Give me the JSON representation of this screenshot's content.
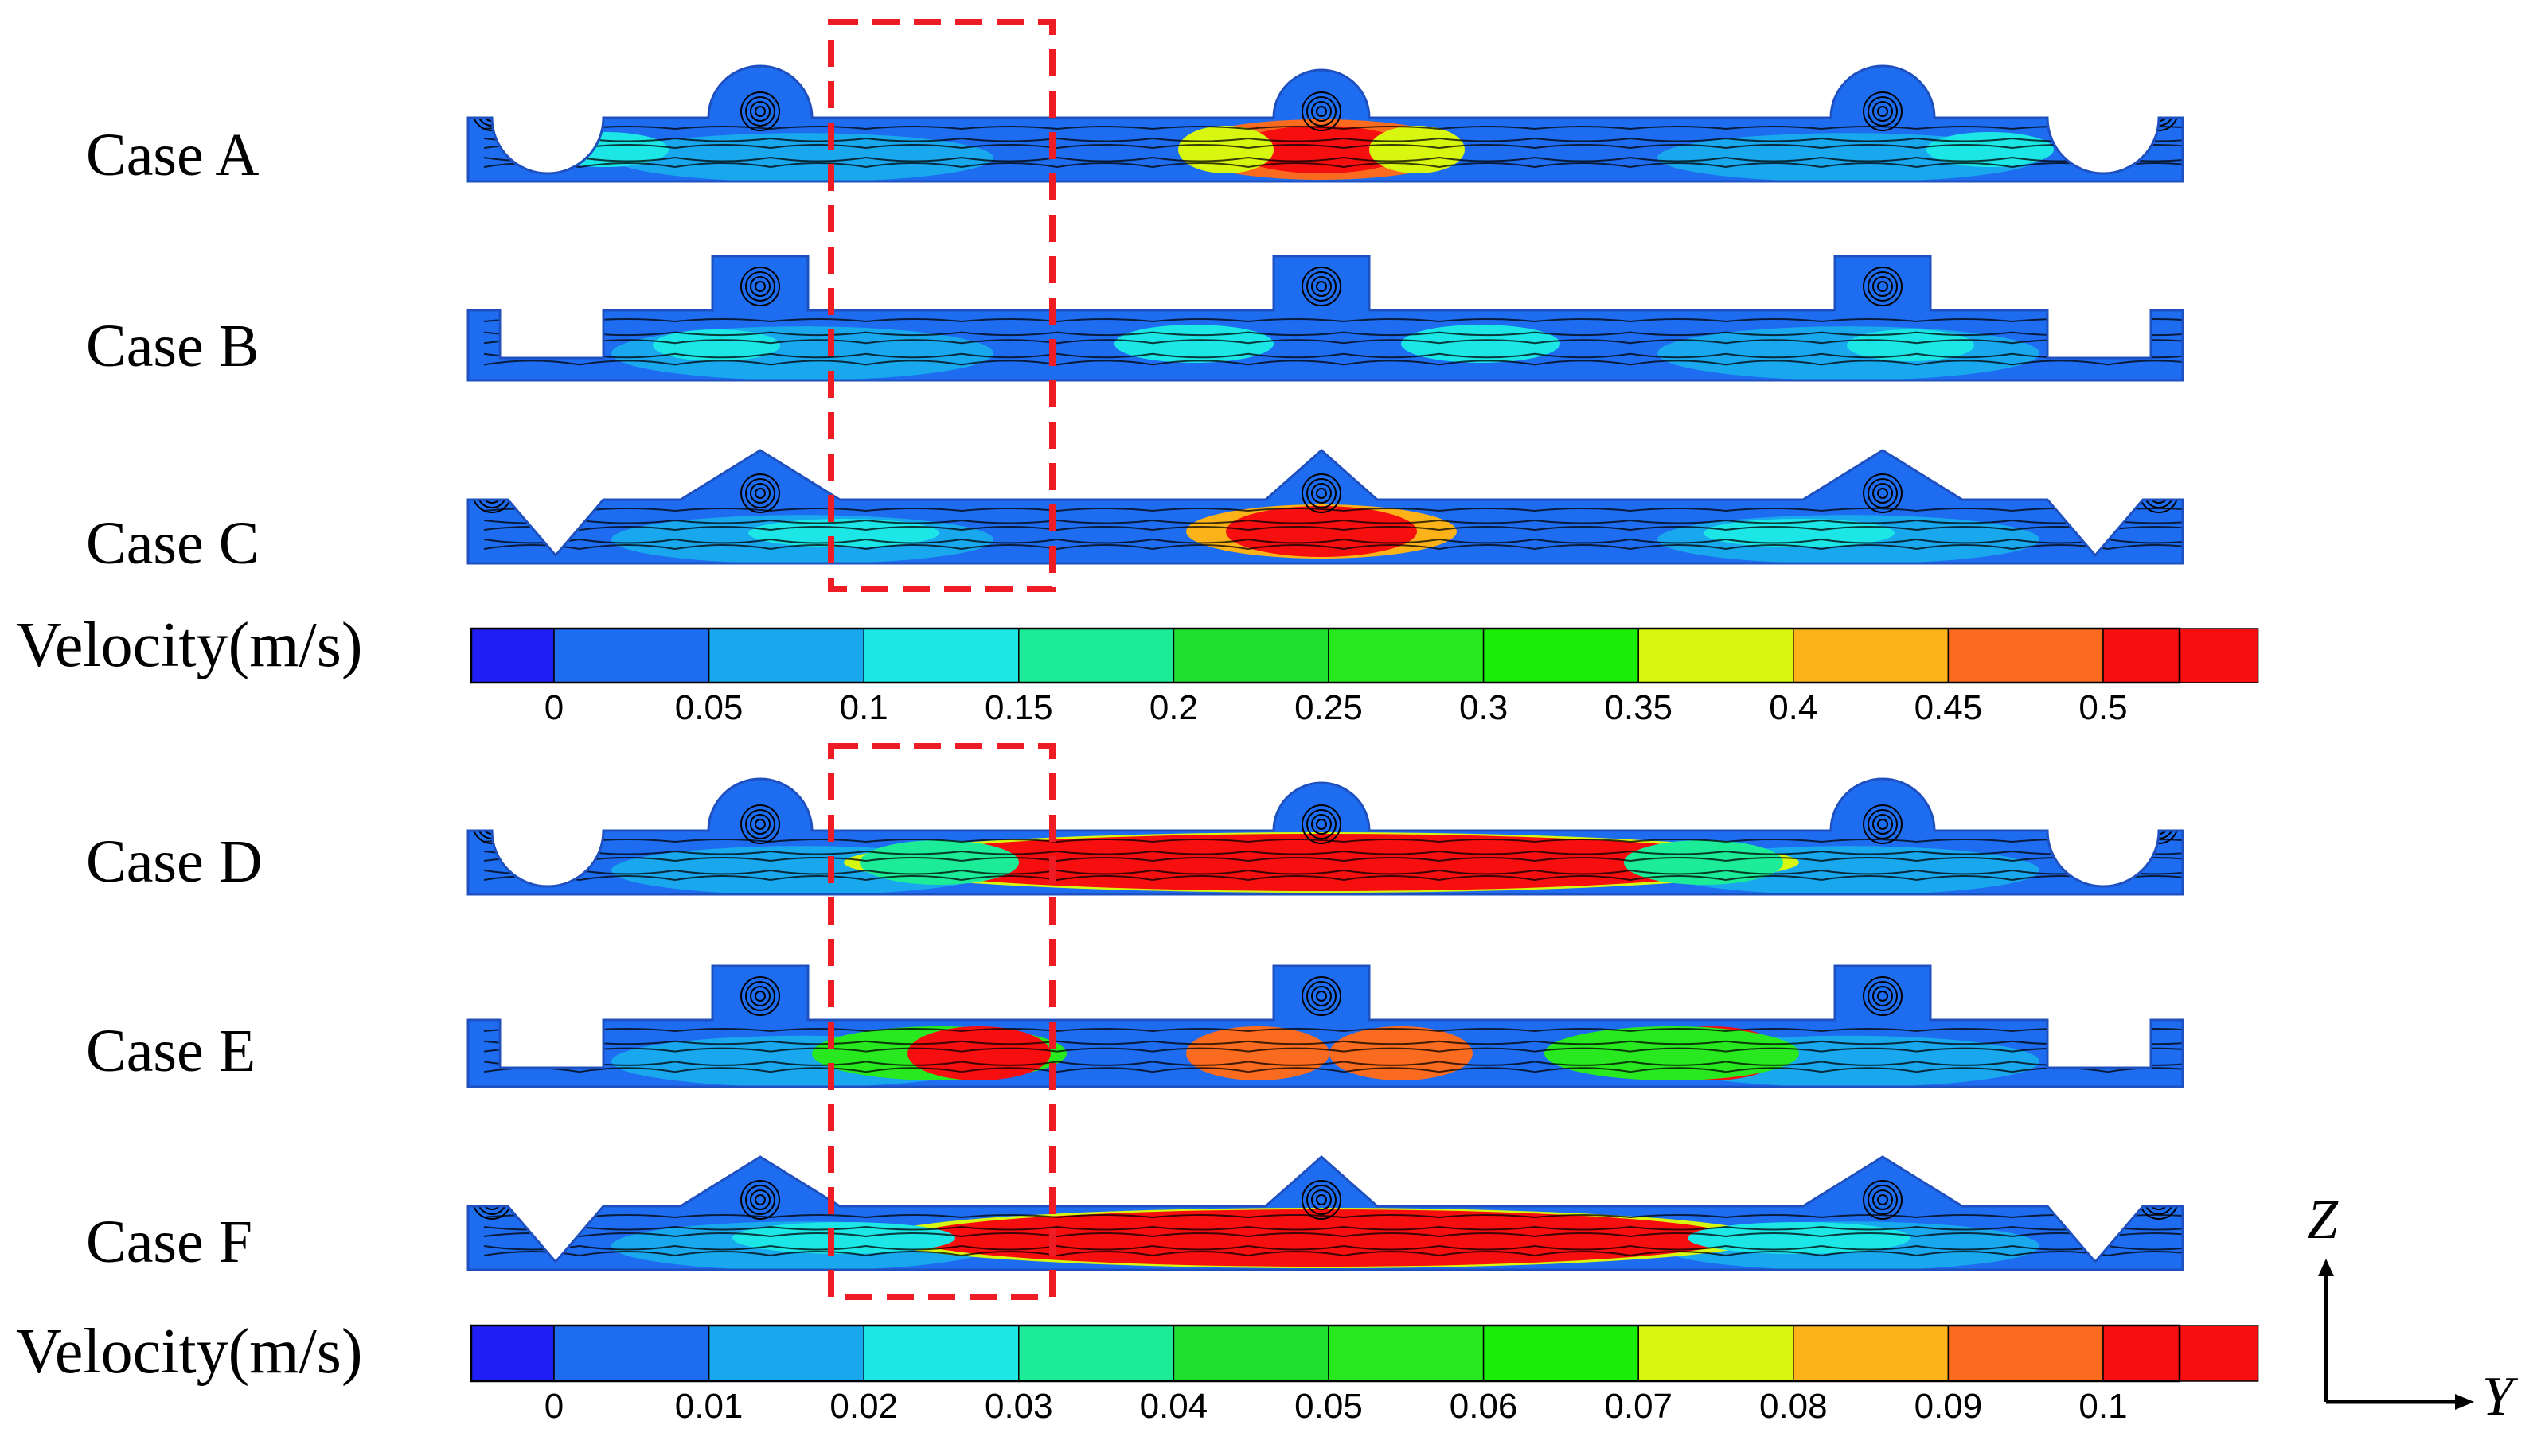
{
  "cases": [
    {
      "label": "Case A",
      "shape": "semicircle"
    },
    {
      "label": "Case B",
      "shape": "rectangle"
    },
    {
      "label": "Case C",
      "shape": "triangle"
    },
    {
      "label": "Case D",
      "shape": "semicircle"
    },
    {
      "label": "Case E",
      "shape": "rectangle"
    },
    {
      "label": "Case F",
      "shape": "triangle"
    }
  ],
  "colorbars": [
    {
      "title": "Velocity(m/s)",
      "ticks": [
        "0",
        "0.05",
        "0.1",
        "0.15",
        "0.2",
        "0.25",
        "0.3",
        "0.35",
        "0.4",
        "0.45",
        "0.5"
      ]
    },
    {
      "title": "Velocity(m/s)",
      "ticks": [
        "0",
        "0.01",
        "0.02",
        "0.03",
        "0.04",
        "0.05",
        "0.06",
        "0.07",
        "0.08",
        "0.09",
        "0.1"
      ]
    }
  ],
  "colormap": [
    "#1f1ff5",
    "#1e6cf0",
    "#19a7ee",
    "#1de6e6",
    "#1cec97",
    "#20e02f",
    "#28e81f",
    "#19ee08",
    "#d7f710",
    "#fbb319",
    "#fb6b1f",
    "#f70f0f"
  ],
  "axes": {
    "vertical": "Z",
    "horizontal": "Y"
  },
  "highlight_color": "#ee1c24"
}
